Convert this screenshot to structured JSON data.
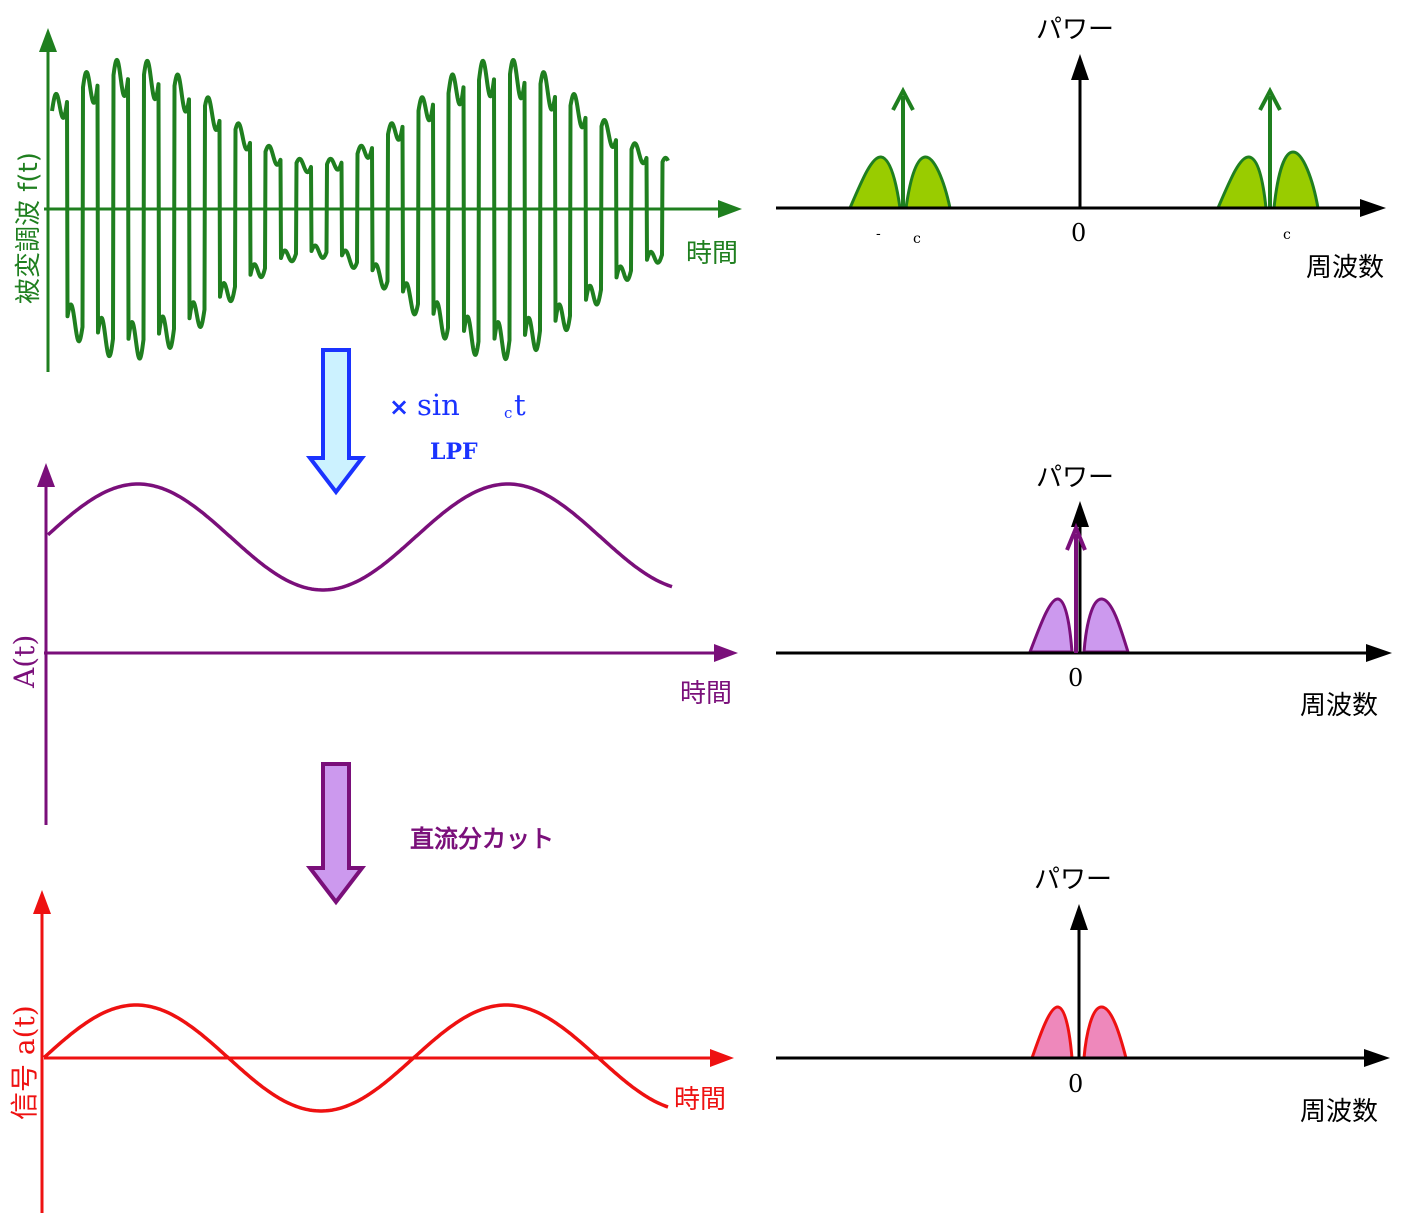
{
  "colors": {
    "am": "#1f7f1f",
    "am_fill": "#99cc00",
    "envelope": "#7a0f7a",
    "envelope_fill": "#cc99ee",
    "signal": "#ee1111",
    "signal_fill": "#ee88bb",
    "step1_arrow": "#1a33ff",
    "step1_arrow_fill": "#ccf2ff",
    "step2_arrow": "#7a0f7a",
    "step2_arrow_fill": "#cc99ee",
    "axis_black": "#000000"
  },
  "panel_am": {
    "ylabel": "被変調波  f(t)",
    "xlabel": "時間"
  },
  "panel_envelope": {
    "ylabel": "A(t)",
    "xlabel": "時間"
  },
  "panel_signal": {
    "ylabel": "信号 a(t)",
    "xlabel": "時間"
  },
  "step1": {
    "op_mult": "×",
    "op_sin": "sin",
    "op_sub": "c",
    "op_t": "t",
    "op_filter": "LPF"
  },
  "step2": {
    "label": "直流分カット"
  },
  "spectrum_am": {
    "ylabel": "パワー",
    "xlabel": "周波数",
    "zero": "0",
    "neg_dash": "-",
    "neg_sub": "c",
    "pos_sub": "c"
  },
  "spectrum_envelope": {
    "ylabel": "パワー",
    "xlabel": "周波数",
    "zero": "0"
  },
  "spectrum_signal": {
    "ylabel": "パワー",
    "xlabel": "周波数",
    "zero": "0"
  }
}
